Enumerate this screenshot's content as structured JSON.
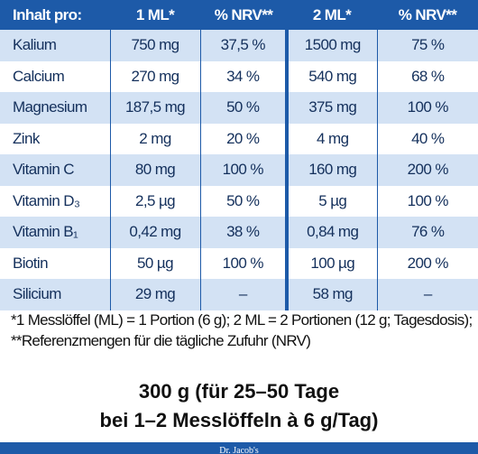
{
  "table": {
    "header": [
      "Inhalt pro:",
      "1 ML*",
      "% NRV**",
      "2 ML*",
      "% NRV**"
    ],
    "rows": [
      [
        "Kalium",
        "750 mg",
        "37,5 %",
        "1500 mg",
        "75 %"
      ],
      [
        "Calcium",
        "270 mg",
        "34 %",
        "540 mg",
        "68 %"
      ],
      [
        "Magnesium",
        "187,5 mg",
        "50 %",
        "375 mg",
        "100 %"
      ],
      [
        "Zink",
        "2 mg",
        "20 %",
        "4 mg",
        "40 %"
      ],
      [
        "Vitamin C",
        "80 mg",
        "100 %",
        "160 mg",
        "200 %"
      ],
      [
        "Vitamin D₃",
        "2,5 µg",
        "50 %",
        "5 µg",
        "100 %"
      ],
      [
        "Vitamin B₁",
        "0,42 mg",
        "38 %",
        "0,84 mg",
        "76 %"
      ],
      [
        "Biotin",
        "50 µg",
        "100 %",
        "100 µg",
        "200 %"
      ],
      [
        "Silicium",
        "29 mg",
        "–",
        "58 mg",
        "–"
      ]
    ]
  },
  "footnote": "*1 Messlöffel (ML) = 1 Portion (6 g); 2 ML = 2 Portionen (12 g; Tagesdosis); **Referenzmengen für die tägliche Zufuhr (NRV)",
  "package": [
    "300 g (für 25–50 Tage",
    "bei 1–2 Messlöffeln à 6 g/Tag)"
  ],
  "brand": "Dr. Jacob's"
}
